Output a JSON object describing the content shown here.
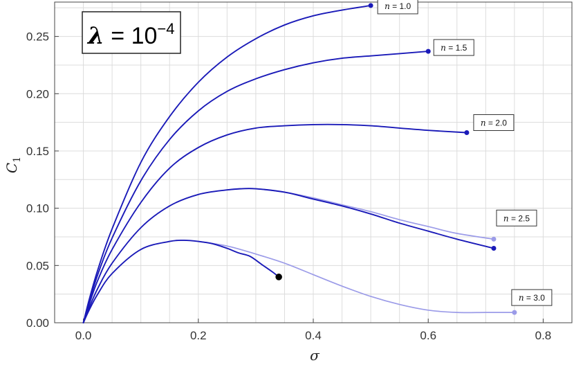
{
  "chart_data": {
    "type": "line",
    "title": {
      "symbol": "λ",
      "equals": " = 10",
      "exponent": "−4"
    },
    "xlabel": "σ",
    "ylabel": {
      "base": "C",
      "sub": "1"
    },
    "xlim": [
      -0.05,
      0.85
    ],
    "ylim": [
      0,
      0.28
    ],
    "xticks": [
      "0.0",
      "0.2",
      "0.4",
      "0.6",
      "0.8"
    ],
    "xtick_values": [
      0,
      0.2,
      0.4,
      0.6,
      0.8
    ],
    "yticks": [
      "0.00",
      "0.05",
      "0.10",
      "0.15",
      "0.20",
      "0.25"
    ],
    "ytick_values": [
      0,
      0.05,
      0.1,
      0.15,
      0.2,
      0.25
    ],
    "grid": true,
    "colors": {
      "main": "#1a1ab8",
      "light": "#9b9be8",
      "end_dot": "#000000",
      "grid": "#dcdcdc",
      "axis": "#444444"
    },
    "series": [
      {
        "label": {
          "var": "n",
          "text": " = 1.0"
        },
        "style": "main",
        "x": [
          0,
          0.01,
          0.025,
          0.05,
          0.1,
          0.15,
          0.2,
          0.25,
          0.3,
          0.35,
          0.4,
          0.45,
          0.5
        ],
        "y": [
          0,
          0.02,
          0.046,
          0.082,
          0.14,
          0.18,
          0.21,
          0.232,
          0.248,
          0.26,
          0.268,
          0.273,
          0.277
        ]
      },
      {
        "label": {
          "var": "n",
          "text": " = 1.5"
        },
        "style": "main",
        "x": [
          0,
          0.01,
          0.025,
          0.05,
          0.1,
          0.15,
          0.2,
          0.25,
          0.3,
          0.35,
          0.4,
          0.45,
          0.5,
          0.55,
          0.6
        ],
        "y": [
          0,
          0.018,
          0.042,
          0.074,
          0.124,
          0.16,
          0.185,
          0.202,
          0.213,
          0.221,
          0.227,
          0.231,
          0.233,
          0.235,
          0.237
        ]
      },
      {
        "label": {
          "var": "n",
          "text": " = 2.0"
        },
        "style": "main",
        "x": [
          0,
          0.01,
          0.025,
          0.05,
          0.1,
          0.15,
          0.2,
          0.25,
          0.3,
          0.35,
          0.4,
          0.45,
          0.5,
          0.55,
          0.6,
          0.667
        ],
        "y": [
          0,
          0.016,
          0.037,
          0.064,
          0.105,
          0.135,
          0.153,
          0.164,
          0.17,
          0.172,
          0.173,
          0.173,
          0.172,
          0.17,
          0.168,
          0.166
        ]
      },
      {
        "label": {
          "var": "n",
          "text": " = 2.5"
        },
        "style": "light",
        "x": [
          0.25,
          0.275,
          0.3,
          0.35,
          0.4,
          0.45,
          0.5,
          0.55,
          0.6,
          0.65,
          0.714
        ],
        "y": [
          0.116,
          0.117,
          0.117,
          0.114,
          0.109,
          0.103,
          0.097,
          0.09,
          0.084,
          0.078,
          0.073
        ]
      },
      {
        "label": {
          "var": "n",
          "text": ""
        },
        "style": "main",
        "x": [
          0,
          0.01,
          0.025,
          0.05,
          0.1,
          0.15,
          0.2,
          0.25,
          0.275,
          0.3,
          0.35,
          0.4,
          0.45,
          0.5,
          0.55,
          0.6,
          0.65,
          0.714
        ],
        "y": [
          0,
          0.013,
          0.03,
          0.052,
          0.083,
          0.102,
          0.112,
          0.116,
          0.117,
          0.117,
          0.114,
          0.108,
          0.102,
          0.095,
          0.087,
          0.08,
          0.073,
          0.065
        ]
      },
      {
        "label": {
          "var": "n",
          "text": " = 3.0"
        },
        "style": "light",
        "x": [
          0.2,
          0.25,
          0.3,
          0.35,
          0.4,
          0.45,
          0.5,
          0.55,
          0.6,
          0.65,
          0.7,
          0.75
        ],
        "y": [
          0.071,
          0.067,
          0.06,
          0.052,
          0.042,
          0.032,
          0.023,
          0.016,
          0.011,
          0.009,
          0.009,
          0.009
        ]
      },
      {
        "label": {
          "var": "n",
          "text": ""
        },
        "style": "main",
        "x": [
          0,
          0.01,
          0.025,
          0.05,
          0.1,
          0.15,
          0.175,
          0.2,
          0.225,
          0.25,
          0.27,
          0.29,
          0.31,
          0.33,
          0.34
        ],
        "y": [
          0,
          0.011,
          0.025,
          0.043,
          0.064,
          0.071,
          0.072,
          0.071,
          0.069,
          0.065,
          0.061,
          0.058,
          0.051,
          0.044,
          0.04
        ]
      }
    ],
    "end_points": [
      {
        "x": 0.5,
        "y": 0.277,
        "style": "main",
        "callout": 0
      },
      {
        "x": 0.6,
        "y": 0.237,
        "style": "main",
        "callout": 1
      },
      {
        "x": 0.667,
        "y": 0.166,
        "style": "main",
        "callout": 2
      },
      {
        "x": 0.714,
        "y": 0.073,
        "style": "light",
        "callout": 3
      },
      {
        "x": 0.714,
        "y": 0.065,
        "style": "main",
        "callout": -1
      },
      {
        "x": 0.75,
        "y": 0.009,
        "style": "light",
        "callout": 5
      },
      {
        "x": 0.34,
        "y": 0.04,
        "style": "end_dot",
        "callout": -1
      }
    ]
  }
}
